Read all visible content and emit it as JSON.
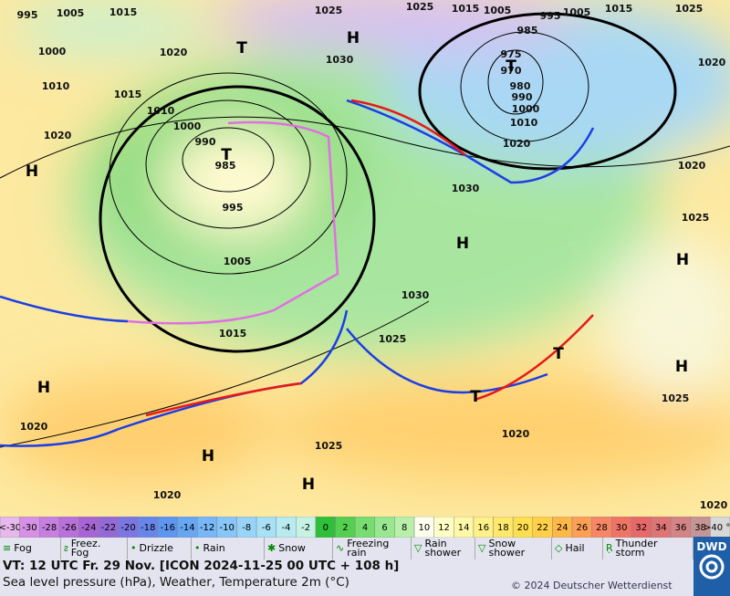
{
  "map": {
    "isobar_labels": [
      "995",
      "1005",
      "1015",
      "1025",
      "1025",
      "1015",
      "1005",
      "995",
      "1005",
      "1015",
      "1025",
      "1000",
      "1010",
      "1020",
      "1015",
      "1010",
      "1000",
      "990",
      "985",
      "995",
      "1005",
      "1015",
      "1020",
      "1030",
      "985",
      "975",
      "970",
      "980",
      "990",
      "1000",
      "1010",
      "1020",
      "1030",
      "1020",
      "1025",
      "1020",
      "1030",
      "1025",
      "1025",
      "1020",
      "1020",
      "1020",
      "1025",
      "1020"
    ],
    "pressure_centers": [
      "H",
      "H",
      "H",
      "H",
      "H",
      "H",
      "H",
      "H",
      "T",
      "T",
      "T",
      "T",
      "T"
    ]
  },
  "temperature_scale": {
    "labels": [
      "<-30",
      "-30",
      "-28",
      "-26",
      "-24",
      "-22",
      "-20",
      "-18",
      "-16",
      "-14",
      "-12",
      "-10",
      "-8",
      "-6",
      "-4",
      "-2",
      "0",
      "2",
      "4",
      "6",
      "8",
      "10",
      "12",
      "14",
      "16",
      "18",
      "20",
      "22",
      "24",
      "26",
      "28",
      "30",
      "32",
      "34",
      "36",
      "38",
      ">40 °C"
    ],
    "colors": [
      "#e6b8ec",
      "#d690e6",
      "#c77fe0",
      "#b870da",
      "#a864d4",
      "#9469d6",
      "#7b76e2",
      "#6885ea",
      "#5d95ef",
      "#67a6f3",
      "#77b6f7",
      "#88c6f8",
      "#98d4f7",
      "#a8e0f5",
      "#b8ebef",
      "#c6f2e4",
      "#2fbf3a",
      "#55cf50",
      "#78dd70",
      "#98e890",
      "#b8f0a8",
      "#fffff0",
      "#ffffc6",
      "#fff8a6",
      "#fff088",
      "#ffe86a",
      "#ffdf50",
      "#ffd048",
      "#ffb848",
      "#ff9e55",
      "#f78664",
      "#ef7464",
      "#e76868",
      "#de7474",
      "#d48484",
      "#c59494",
      "#d8d8d8"
    ]
  },
  "weather_legend": [
    "Fog",
    "Freez. Fog",
    "Drizzle",
    "Rain",
    "Snow",
    "Freezing rain",
    "Rain shower",
    "Snow shower",
    "Hail",
    "Thunder storm"
  ],
  "footer": {
    "valid_time": "VT: 12 UTC Fr.  29 Nov. [ICON 2024-11-25  00 UTC + 108 h]",
    "description": "Sea level pressure (hPa), Weather, Temperature 2m (°C)",
    "copyright": "© 2024 Deutscher Wetterdienst",
    "logo": "DWD"
  }
}
